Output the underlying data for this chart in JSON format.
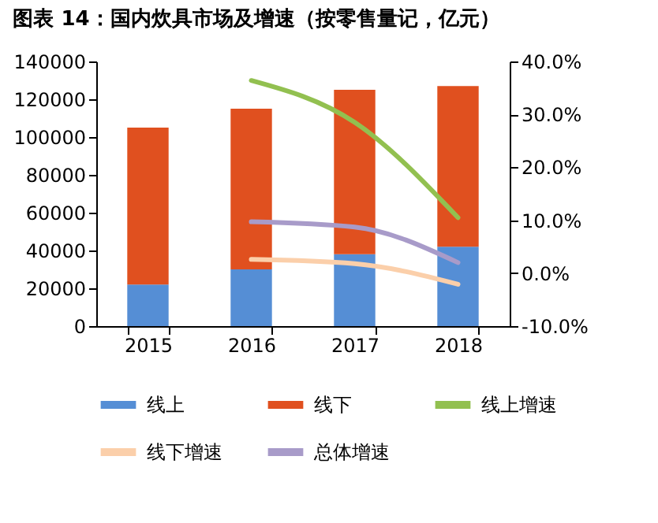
{
  "chart_data": {
    "type": "bar",
    "title": "图表 14：国内炊具市场及增速（按零售量记，亿元）",
    "categories": [
      "2015",
      "2016",
      "2017",
      "2018"
    ],
    "stacked": true,
    "legend": "bottom",
    "ylim": [
      0,
      140000
    ],
    "yticks": [
      0,
      20000,
      40000,
      60000,
      80000,
      100000,
      120000,
      140000
    ],
    "y2lim": [
      -10,
      40
    ],
    "y2ticks": [
      {
        "value": -10,
        "label": "-10.0%"
      },
      {
        "value": 0,
        "label": "0.0%"
      },
      {
        "value": 10,
        "label": "10.0%"
      },
      {
        "value": 20,
        "label": "20.0%"
      },
      {
        "value": 30,
        "label": "30.0%"
      },
      {
        "value": 40,
        "label": "40.0%"
      }
    ],
    "series": [
      {
        "name": "线上",
        "color": "#558ed5",
        "values": [
          22000,
          30000,
          38000,
          42000
        ]
      },
      {
        "name": "线下",
        "color": "#e0501f",
        "values": [
          83000,
          85000,
          87000,
          85000
        ]
      },
      {
        "name": "线上增速",
        "type": "line",
        "axis": "y2",
        "color": "#92c050",
        "values": [
          null,
          36.4,
          28.5,
          10.5
        ]
      },
      {
        "name": "线下增速",
        "type": "line",
        "axis": "y2",
        "color": "#fbcfaa",
        "values": [
          null,
          2.6,
          1.8,
          -2.1
        ]
      },
      {
        "name": "总体增速",
        "type": "line",
        "axis": "y2",
        "color": "#a89bc9",
        "values": [
          null,
          9.7,
          8.7,
          2.0
        ]
      }
    ]
  }
}
